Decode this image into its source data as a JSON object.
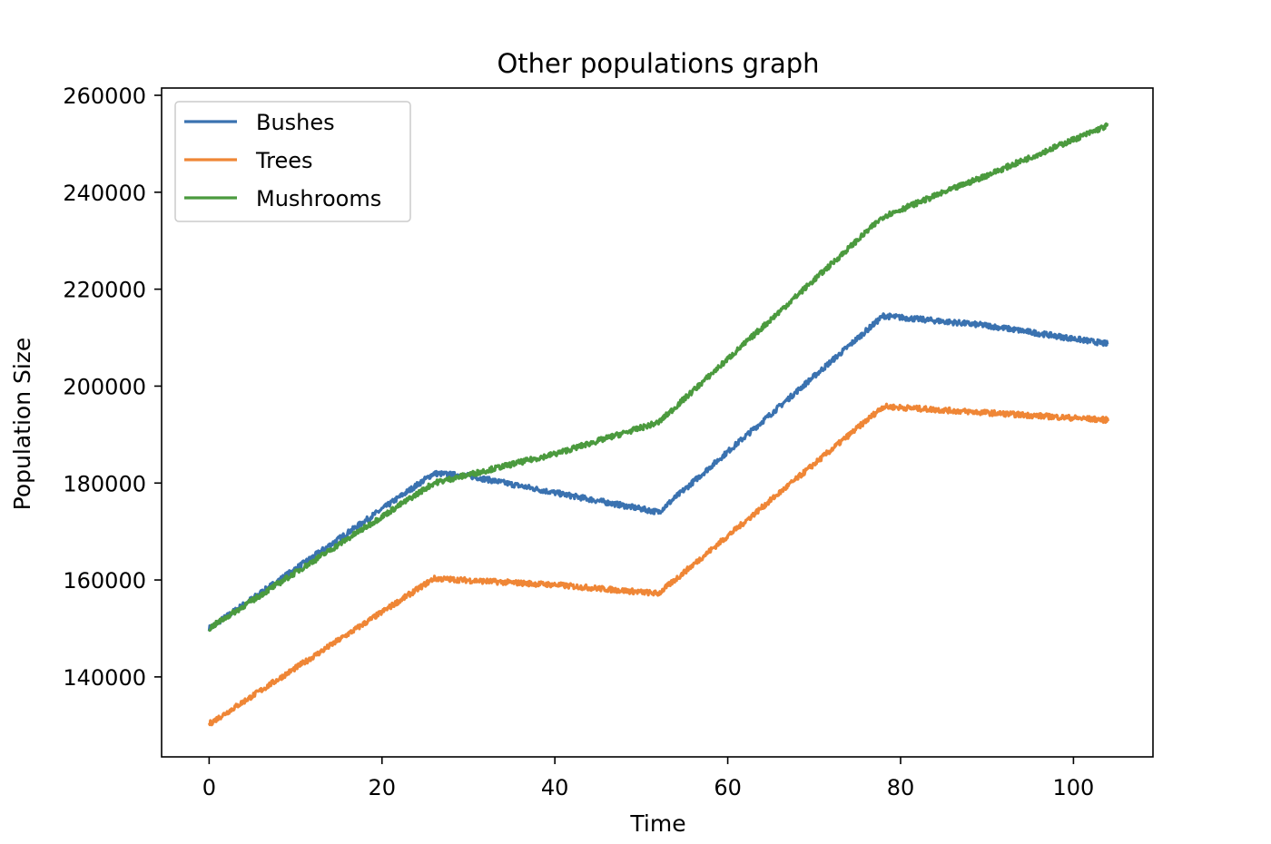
{
  "chart_data": {
    "type": "line",
    "title": "Other populations graph",
    "xlabel": "Time",
    "ylabel": "Population Size",
    "xlim": [
      -5.5,
      109.2
    ],
    "ylim": [
      123500,
      261500
    ],
    "xticks": [
      0,
      20,
      40,
      60,
      80,
      100
    ],
    "yticks": [
      140000,
      160000,
      180000,
      200000,
      220000,
      240000,
      260000
    ],
    "grid": false,
    "legend_position": "upper-left",
    "series": [
      {
        "name": "Bushes",
        "color": "#3a72b0",
        "points": [
          [
            0,
            150000
          ],
          [
            26,
            182000
          ],
          [
            30,
            181500
          ],
          [
            40,
            178000
          ],
          [
            52,
            174000
          ],
          [
            78,
            214500
          ],
          [
            90,
            212500
          ],
          [
            104,
            208700
          ]
        ]
      },
      {
        "name": "Trees",
        "color": "#ef8636",
        "points": [
          [
            0,
            130300
          ],
          [
            26,
            160300
          ],
          [
            40,
            159000
          ],
          [
            52,
            157200
          ],
          [
            78,
            195800
          ],
          [
            90,
            194500
          ],
          [
            104,
            193000
          ]
        ]
      },
      {
        "name": "Mushrooms",
        "color": "#4b9a3e",
        "points": [
          [
            0,
            150000
          ],
          [
            26,
            180000
          ],
          [
            40,
            186000
          ],
          [
            52,
            192500
          ],
          [
            78,
            235000
          ],
          [
            90,
            243500
          ],
          [
            104,
            253800
          ]
        ]
      }
    ]
  }
}
